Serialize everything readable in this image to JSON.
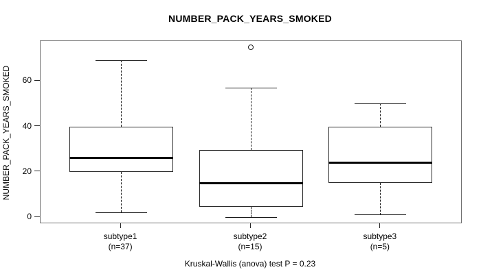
{
  "chart_data": {
    "type": "boxplot",
    "title": "NUMBER_PACK_YEARS_SMOKED",
    "ylabel": "NUMBER_PACK_YEARS_SMOKED",
    "caption": "Kruskal-Wallis (anova) test P = 0.23",
    "ylim": [
      -2.4,
      77.6
    ],
    "yticks": [
      0,
      20,
      40,
      60
    ],
    "grid": false,
    "legend": "none",
    "groups": [
      {
        "label": "subtype1",
        "sublabel": "(n=37)",
        "whisker_low": 2,
        "q1": 20,
        "median": 26,
        "q3": 40,
        "whisker_high": 69,
        "outliers": []
      },
      {
        "label": "subtype2",
        "sublabel": "(n=15)",
        "whisker_low": 0,
        "q1": 4.5,
        "median": 15,
        "q3": 29.5,
        "whisker_high": 57,
        "outliers": [
          75
        ]
      },
      {
        "label": "subtype3",
        "sublabel": "(n=5)",
        "whisker_low": 1,
        "q1": 15,
        "median": 24,
        "q3": 40,
        "whisker_high": 50,
        "outliers": []
      }
    ],
    "colors": {
      "frame": "#6e6e6e",
      "box_border": "#2a2a2a",
      "median": "#000000",
      "background": "#ffffff"
    }
  }
}
